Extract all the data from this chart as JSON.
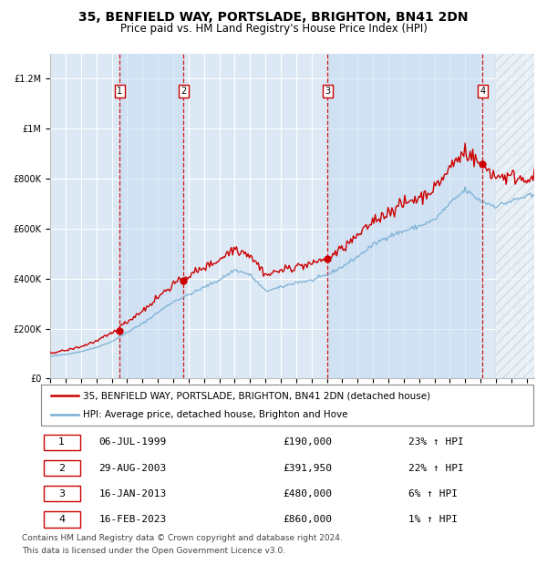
{
  "title": "35, BENFIELD WAY, PORTSLADE, BRIGHTON, BN41 2DN",
  "subtitle": "Price paid vs. HM Land Registry's House Price Index (HPI)",
  "legend_line1": "35, BENFIELD WAY, PORTSLADE, BRIGHTON, BN41 2DN (detached house)",
  "legend_line2": "HPI: Average price, detached house, Brighton and Hove",
  "footer1": "Contains HM Land Registry data © Crown copyright and database right 2024.",
  "footer2": "This data is licensed under the Open Government Licence v3.0.",
  "sales": [
    {
      "num": 1,
      "date": "06-JUL-1999",
      "year": 1999.51,
      "price": 190000,
      "hpi_pct": "23% ↑ HPI"
    },
    {
      "num": 2,
      "date": "29-AUG-2003",
      "year": 2003.66,
      "price": 391950,
      "hpi_pct": "22% ↑ HPI"
    },
    {
      "num": 3,
      "date": "16-JAN-2013",
      "year": 2013.04,
      "price": 480000,
      "hpi_pct": "6% ↑ HPI"
    },
    {
      "num": 4,
      "date": "16-FEB-2023",
      "year": 2023.12,
      "price": 860000,
      "hpi_pct": "1% ↑ HPI"
    }
  ],
  "table_rows": [
    [
      "1",
      "06-JUL-1999",
      "£190,000",
      "23% ↑ HPI"
    ],
    [
      "2",
      "29-AUG-2003",
      "£391,950",
      "22% ↑ HPI"
    ],
    [
      "3",
      "16-JAN-2013",
      "£480,000",
      "6% ↑ HPI"
    ],
    [
      "4",
      "16-FEB-2023",
      "£860,000",
      "1% ↑ HPI"
    ]
  ],
  "ylim": [
    0,
    1300000
  ],
  "yticks": [
    0,
    200000,
    400000,
    600000,
    800000,
    1000000,
    1200000
  ],
  "ytick_labels": [
    "£0",
    "£200K",
    "£400K",
    "£600K",
    "£800K",
    "£1M",
    "£1.2M"
  ],
  "xlim_start": 1995.0,
  "xlim_end": 2026.5,
  "plot_bg": "#dce9f5",
  "hatch_region_start": 2024.0,
  "red_line_color": "#cc0000",
  "blue_line_color": "#7aafd4",
  "grid_color": "#ffffff",
  "dashed_line_color": "#cc0000",
  "sale_dot_color": "#cc0000",
  "box_edge_color": "#cc0000",
  "shade_color": "#c0d8f0",
  "title_fontsize": 10,
  "subtitle_fontsize": 8.5,
  "tick_fontsize": 7,
  "legend_fontsize": 7.5,
  "table_fontsize": 8,
  "footer_fontsize": 6.5
}
